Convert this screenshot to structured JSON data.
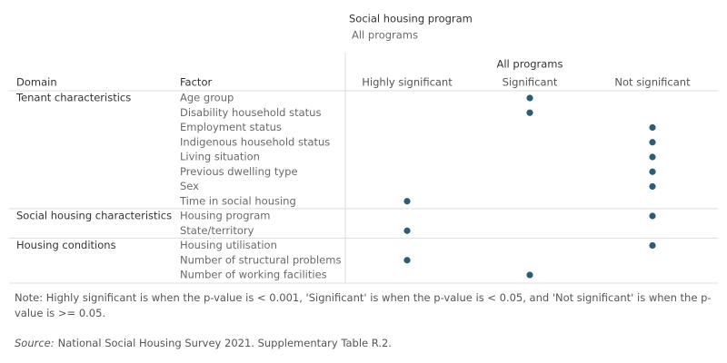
{
  "filter": {
    "title": "Social housing program",
    "value": "All programs"
  },
  "table": {
    "group_header": "All programs",
    "headers": [
      "Domain",
      "Factor"
    ],
    "columns": [
      "Highly significant",
      "Significant",
      "Not significant"
    ],
    "dot_color": "#2b5d74",
    "groups": [
      {
        "domain": "Tenant characteristics",
        "rows": [
          {
            "factor": "Age group",
            "column": 1
          },
          {
            "factor": "Disability household status",
            "column": 1
          },
          {
            "factor": "Employment status",
            "column": 2
          },
          {
            "factor": "Indigenous household status",
            "column": 2
          },
          {
            "factor": "Living situation",
            "column": 2
          },
          {
            "factor": "Previous dwelling type",
            "column": 2
          },
          {
            "factor": "Sex",
            "column": 2
          },
          {
            "factor": "Time in social housing",
            "column": 0
          }
        ]
      },
      {
        "domain": "Social housing characteristics",
        "rows": [
          {
            "factor": "Housing program",
            "column": 2
          },
          {
            "factor": "State/territory",
            "column": 0
          }
        ]
      },
      {
        "domain": "Housing conditions",
        "rows": [
          {
            "factor": "Housing utilisation",
            "column": 2
          },
          {
            "factor": "Number of structural problems",
            "column": 0
          },
          {
            "factor": "Number of working facilities",
            "column": 1
          }
        ]
      }
    ]
  },
  "note": "Note: Highly significant is when the p-value is < 0.001, 'Significant' is when the p-value is < 0.05, and 'Not significant' is when the p-value is >= 0.05.",
  "source": {
    "label": "Source:",
    "text": "National Social Housing Survey 2021. Supplementary Table R.2."
  }
}
